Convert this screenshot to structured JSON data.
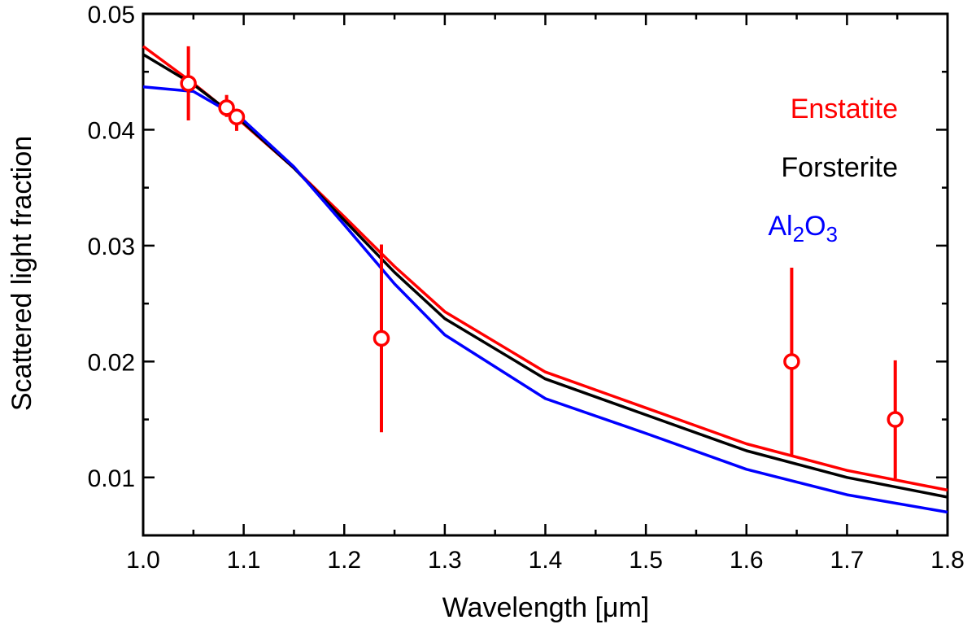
{
  "chart_data": {
    "type": "line",
    "title": "",
    "xlabel": "Wavelength [μm]",
    "ylabel": "Scattered light fraction",
    "xlim": [
      1.0,
      1.8
    ],
    "ylim": [
      0.005,
      0.05
    ],
    "x_ticks": [
      1.0,
      1.1,
      1.2,
      1.3,
      1.4,
      1.5,
      1.6,
      1.7,
      1.8
    ],
    "x_tick_labels": [
      "1.0",
      "1.1",
      "1.2",
      "1.3",
      "1.4",
      "1.5",
      "1.6",
      "1.7",
      "1.8"
    ],
    "x_minor_step": 0.05,
    "y_ticks": [
      0.01,
      0.02,
      0.03,
      0.04,
      0.05
    ],
    "y_tick_labels": [
      "0.01",
      "0.02",
      "0.03",
      "0.04",
      "0.05"
    ],
    "y_minor_step": 0.005,
    "grid": false,
    "legend_position": "top-right",
    "series": [
      {
        "name": "Enstatite",
        "color": "#ff0000",
        "x": [
          1.0,
          1.05,
          1.1,
          1.15,
          1.2,
          1.25,
          1.3,
          1.4,
          1.5,
          1.6,
          1.7,
          1.8
        ],
        "y": [
          0.0472,
          0.044,
          0.0405,
          0.0367,
          0.0325,
          0.0282,
          0.0243,
          0.0191,
          0.016,
          0.0129,
          0.0106,
          0.0089
        ]
      },
      {
        "name": "Forsterite",
        "color": "#000000",
        "x": [
          1.0,
          1.05,
          1.1,
          1.15,
          1.2,
          1.25,
          1.3,
          1.4,
          1.5,
          1.6,
          1.7,
          1.8
        ],
        "y": [
          0.0465,
          0.0439,
          0.0406,
          0.0367,
          0.0322,
          0.0277,
          0.0237,
          0.0185,
          0.0154,
          0.0123,
          0.01,
          0.0083
        ]
      },
      {
        "name_parts": [
          "Al",
          "2",
          "O",
          "3"
        ],
        "color": "#0000ff",
        "x": [
          1.0,
          1.05,
          1.1,
          1.15,
          1.2,
          1.25,
          1.3,
          1.4,
          1.5,
          1.6,
          1.7,
          1.8
        ],
        "y": [
          0.0437,
          0.0433,
          0.0408,
          0.0368,
          0.0318,
          0.0267,
          0.0223,
          0.0168,
          0.0138,
          0.0107,
          0.0085,
          0.007
        ]
      }
    ],
    "measurements": {
      "color": "#ff0000",
      "points": [
        {
          "x": 1.045,
          "y": 0.044,
          "err_low": 0.0032,
          "err_high": 0.0032
        },
        {
          "x": 1.083,
          "y": 0.0419,
          "err_low": 0.0008,
          "err_high": 0.0011
        },
        {
          "x": 1.093,
          "y": 0.0411,
          "err_low": 0.0012,
          "err_high": 0.0006
        },
        {
          "x": 1.237,
          "y": 0.022,
          "err_low": 0.0081,
          "err_high": 0.0081
        },
        {
          "x": 1.645,
          "y": 0.02,
          "err_low": 0.0081,
          "err_high": 0.0081
        },
        {
          "x": 1.748,
          "y": 0.015,
          "err_low": 0.0051,
          "err_high": 0.0051
        }
      ]
    }
  }
}
